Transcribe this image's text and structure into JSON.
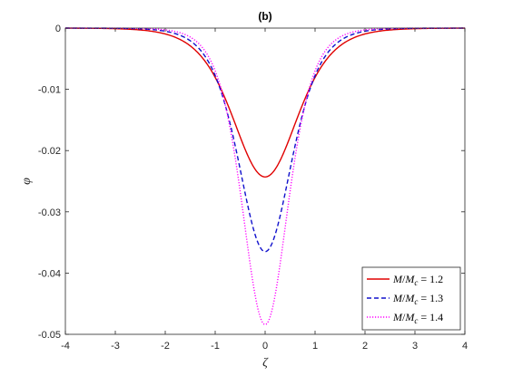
{
  "chart_data": {
    "type": "line",
    "title": "(b)",
    "xlabel": "ζ",
    "ylabel": "φ",
    "xlim": [
      -4,
      4
    ],
    "ylim": [
      -0.05,
      0
    ],
    "xticks": [
      "-4",
      "-3",
      "-2",
      "-1",
      "0",
      "1",
      "2",
      "3",
      "4"
    ],
    "yticks": [
      "0",
      "-0.01",
      "-0.02",
      "-0.03",
      "-0.04",
      "-0.05"
    ],
    "grid": false,
    "legend_position": "bottom-right",
    "series": [
      {
        "name": "M/Mc = 1.2",
        "legend": {
          "italic_a": "M",
          "slash": "/",
          "italic_b": "M",
          "sub": "c",
          "rest": " = 1.2"
        },
        "color": "#e00000",
        "style": "solid",
        "amplitude": -0.0243,
        "x": [
          -4,
          -3.5,
          -3,
          -2.5,
          -2,
          -1.75,
          -1.5,
          -1.25,
          -1,
          -0.75,
          -0.5,
          -0.25,
          0,
          0.25,
          0.5,
          0.75,
          1,
          1.25,
          1.5,
          1.75,
          2,
          2.5,
          3,
          3.5,
          4
        ],
        "y": [
          -0.0,
          -0.0,
          -0.0001,
          -0.0002,
          -0.0006,
          -0.0011,
          -0.002,
          -0.0036,
          -0.0063,
          -0.0102,
          -0.0155,
          -0.0212,
          -0.0243,
          -0.0212,
          -0.0155,
          -0.0102,
          -0.0063,
          -0.0036,
          -0.002,
          -0.0011,
          -0.0006,
          -0.0002,
          -0.0001,
          -0.0,
          -0.0
        ]
      },
      {
        "name": "M/Mc = 1.3",
        "legend": {
          "italic_a": "M",
          "slash": "/",
          "italic_b": "M",
          "sub": "c",
          "rest": " = 1.3"
        },
        "color": "#1010cc",
        "style": "dashed",
        "amplitude": -0.0365,
        "x": [
          -4,
          -3.5,
          -3,
          -2.5,
          -2,
          -1.75,
          -1.5,
          -1.25,
          -1,
          -0.75,
          -0.5,
          -0.25,
          0,
          0.25,
          0.5,
          0.75,
          1,
          1.25,
          1.5,
          1.75,
          2,
          2.5,
          3,
          3.5,
          4
        ],
        "y": [
          -0.0001,
          -0.0002,
          -0.0005,
          -0.0012,
          -0.0029,
          -0.0045,
          -0.007,
          -0.0105,
          -0.0153,
          -0.0212,
          -0.0278,
          -0.0336,
          -0.0365,
          -0.0336,
          -0.0278,
          -0.0212,
          -0.0153,
          -0.0105,
          -0.007,
          -0.0045,
          -0.0029,
          -0.0012,
          -0.0005,
          -0.0002,
          -0.0001
        ]
      },
      {
        "name": "M/Mc = 1.4",
        "legend": {
          "italic_a": "M",
          "slash": "/",
          "italic_b": "M",
          "sub": "c",
          "rest": " = 1.4"
        },
        "color": "#ff00ff",
        "style": "dotted",
        "amplitude": -0.0484,
        "x": [
          -4,
          -3.5,
          -3,
          -2.5,
          -2,
          -1.75,
          -1.5,
          -1.25,
          -1,
          -0.75,
          -0.5,
          -0.25,
          0,
          0.25,
          0.5,
          0.75,
          1,
          1.25,
          1.5,
          1.75,
          2,
          2.5,
          3,
          3.5,
          4
        ],
        "y": [
          -0.0003,
          -0.0008,
          -0.0018,
          -0.004,
          -0.0087,
          -0.0125,
          -0.0176,
          -0.024,
          -0.0313,
          -0.0388,
          -0.0448,
          -0.0478,
          -0.0484,
          -0.0478,
          -0.0448,
          -0.0388,
          -0.0313,
          -0.024,
          -0.0176,
          -0.0125,
          -0.0087,
          -0.004,
          -0.0018,
          -0.0008,
          -0.0003
        ]
      }
    ]
  }
}
